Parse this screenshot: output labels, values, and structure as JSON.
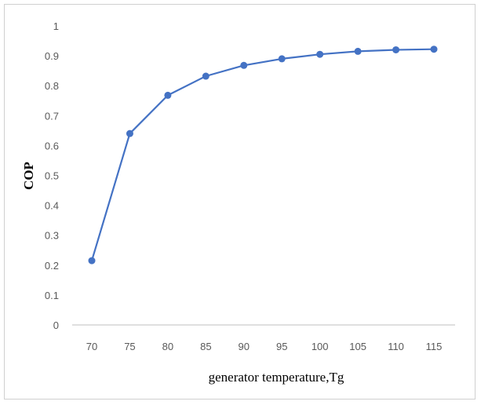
{
  "chart_data": {
    "type": "line",
    "title": "",
    "xlabel": "generator temperature,Tg",
    "ylabel": "COP",
    "x": [
      70,
      75,
      80,
      85,
      90,
      95,
      100,
      105,
      110,
      115
    ],
    "series": [
      {
        "values": [
          0.215,
          0.64,
          0.768,
          0.832,
          0.868,
          0.89,
          0.905,
          0.915,
          0.92,
          0.922
        ]
      }
    ],
    "ylim": [
      0,
      1
    ],
    "yticks": [
      "0",
      "0.1",
      "0.2",
      "0.3",
      "0.4",
      "0.5",
      "0.6",
      "0.7",
      "0.8",
      "0.9",
      "1"
    ],
    "xticks": [
      "70",
      "75",
      "80",
      "85",
      "90",
      "95",
      "100",
      "105",
      "110",
      "115"
    ],
    "grid": false,
    "legend": "none",
    "colors": {
      "line": "#4472c4",
      "marker": "#4472c4",
      "axis": "#bfbfbf"
    }
  }
}
